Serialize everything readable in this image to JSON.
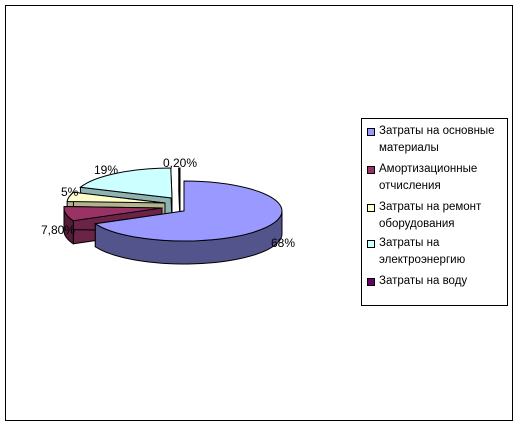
{
  "chart_data": {
    "type": "pie",
    "style": "3d-exploded",
    "categories": [
      "Затраты на основные материалы",
      "Амортизационные отчисления",
      "Затраты на ремонт оборудования",
      "Затраты на электроэнергию",
      "Затраты на воду"
    ],
    "values": [
      68,
      7.8,
      5,
      19,
      0.2
    ],
    "value_labels": [
      "68%",
      "7,80%",
      "5%",
      "19%",
      "0,20%"
    ],
    "colors": [
      "#9999FF",
      "#993366",
      "#FFFFCC",
      "#CCFFFF",
      "#660066"
    ],
    "legend": {
      "position": "right",
      "items": [
        "Затраты на основные материалы",
        "Амортизационные отчисления",
        "Затраты на ремонт оборудования",
        "Затраты на электроэнергию",
        "Затраты на воду"
      ]
    }
  }
}
